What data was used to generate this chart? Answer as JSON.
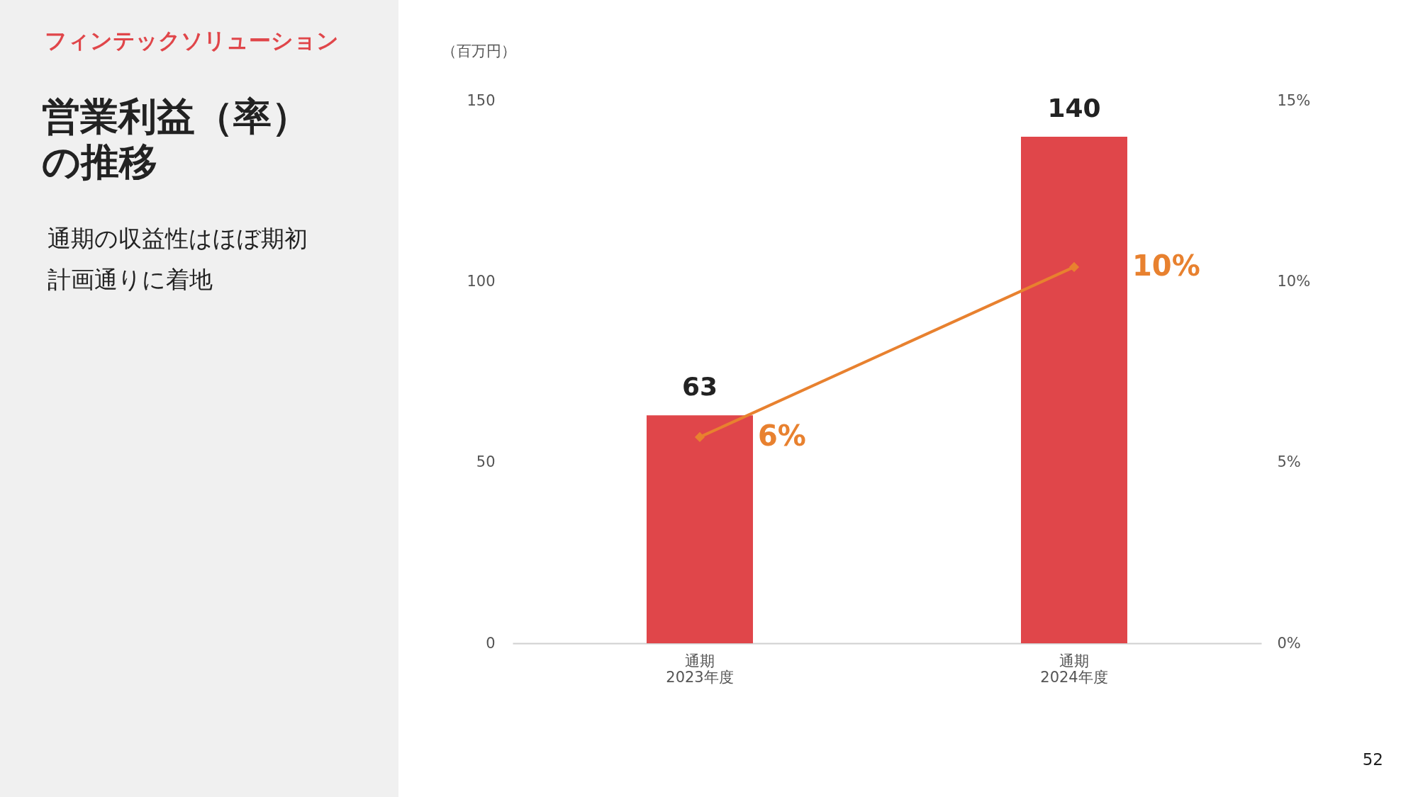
{
  "chart_data": {
    "type": "bar",
    "title": "営業利益（率）の推移",
    "subtitle": "通期の収益性はほぼ期初計画通りに着地",
    "ylabel": "（百万円）",
    "annotations": [
      "フィンテックソリューション",
      "52"
    ],
    "categories": [
      "通期\n2023年度",
      "通期\n2024年度"
    ],
    "series": [
      {
        "color": "#e0464a",
        "values": [
          63,
          140
        ],
        "value_labels": [
          "63",
          "140"
        ]
      },
      {
        "type": "line",
        "axis": "y2",
        "color": "#e8812f",
        "marker": "diamond",
        "values": [
          5.7,
          10.4
        ],
        "value_labels": [
          "6%",
          "10%"
        ]
      }
    ],
    "ylim": [
      0,
      150
    ],
    "yticks": [
      0,
      50,
      100,
      150
    ],
    "y2lim": [
      0,
      15
    ],
    "y2ticks": [
      {
        "value": 0,
        "label": "0%"
      },
      {
        "value": 5,
        "label": "5%"
      },
      {
        "value": 10,
        "label": "10%"
      },
      {
        "value": 15,
        "label": "15%"
      }
    ],
    "grid": false,
    "legend": false
  }
}
